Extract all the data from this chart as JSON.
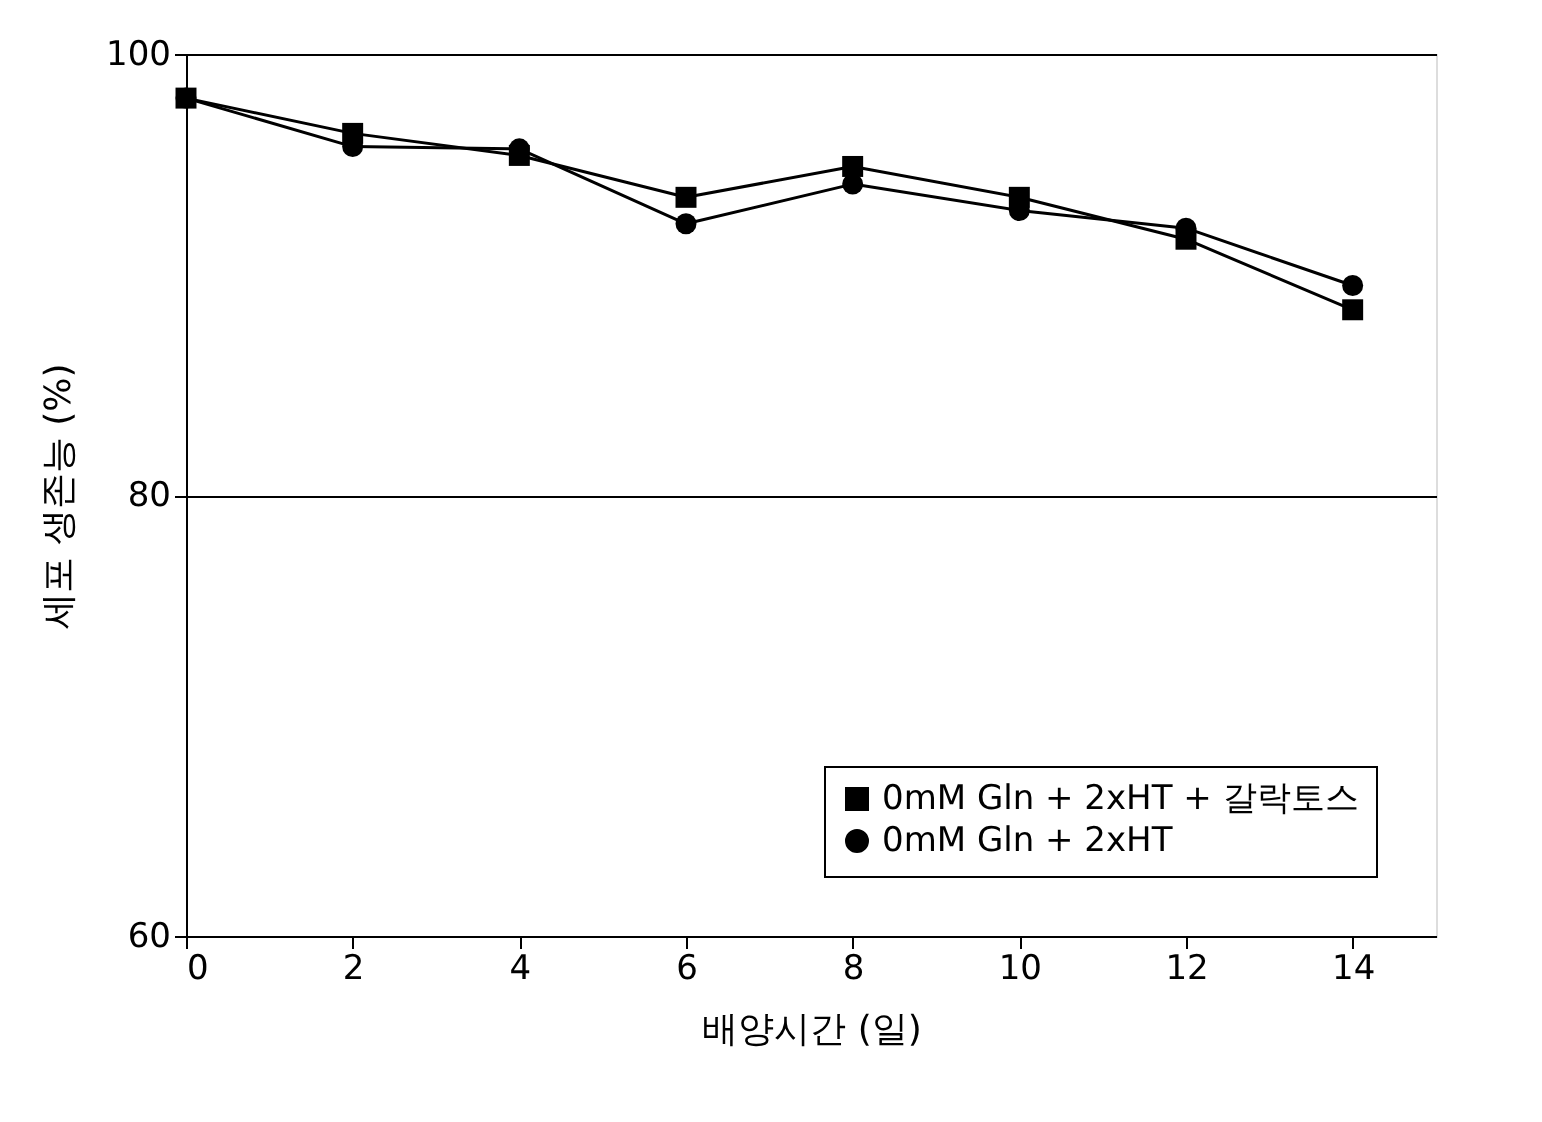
{
  "chart_data": {
    "type": "line",
    "xlabel": "배양시간 (일)",
    "ylabel": "세포 생존능 (%)",
    "x": [
      0,
      2,
      4,
      6,
      8,
      10,
      12,
      14
    ],
    "series": [
      {
        "name": "0mM Gln + 2xHT + 갈락토스",
        "color": "#000000",
        "marker": "square",
        "values": [
          98.0,
          96.4,
          95.4,
          93.5,
          94.9,
          93.5,
          91.6,
          88.4
        ]
      },
      {
        "name": "0mM Gln + 2xHT",
        "color": "#000000",
        "marker": "circle",
        "values": [
          98.0,
          95.8,
          95.7,
          92.3,
          94.1,
          92.9,
          92.1,
          89.5
        ]
      }
    ],
    "xlim": [
      0,
      15
    ],
    "xticks": [
      0,
      2,
      4,
      6,
      8,
      10,
      12,
      14
    ],
    "ylim": [
      60,
      100
    ],
    "yticks": [
      60,
      80,
      100
    ],
    "grid": "y",
    "legend": "bottom right",
    "line_style": "solid"
  }
}
